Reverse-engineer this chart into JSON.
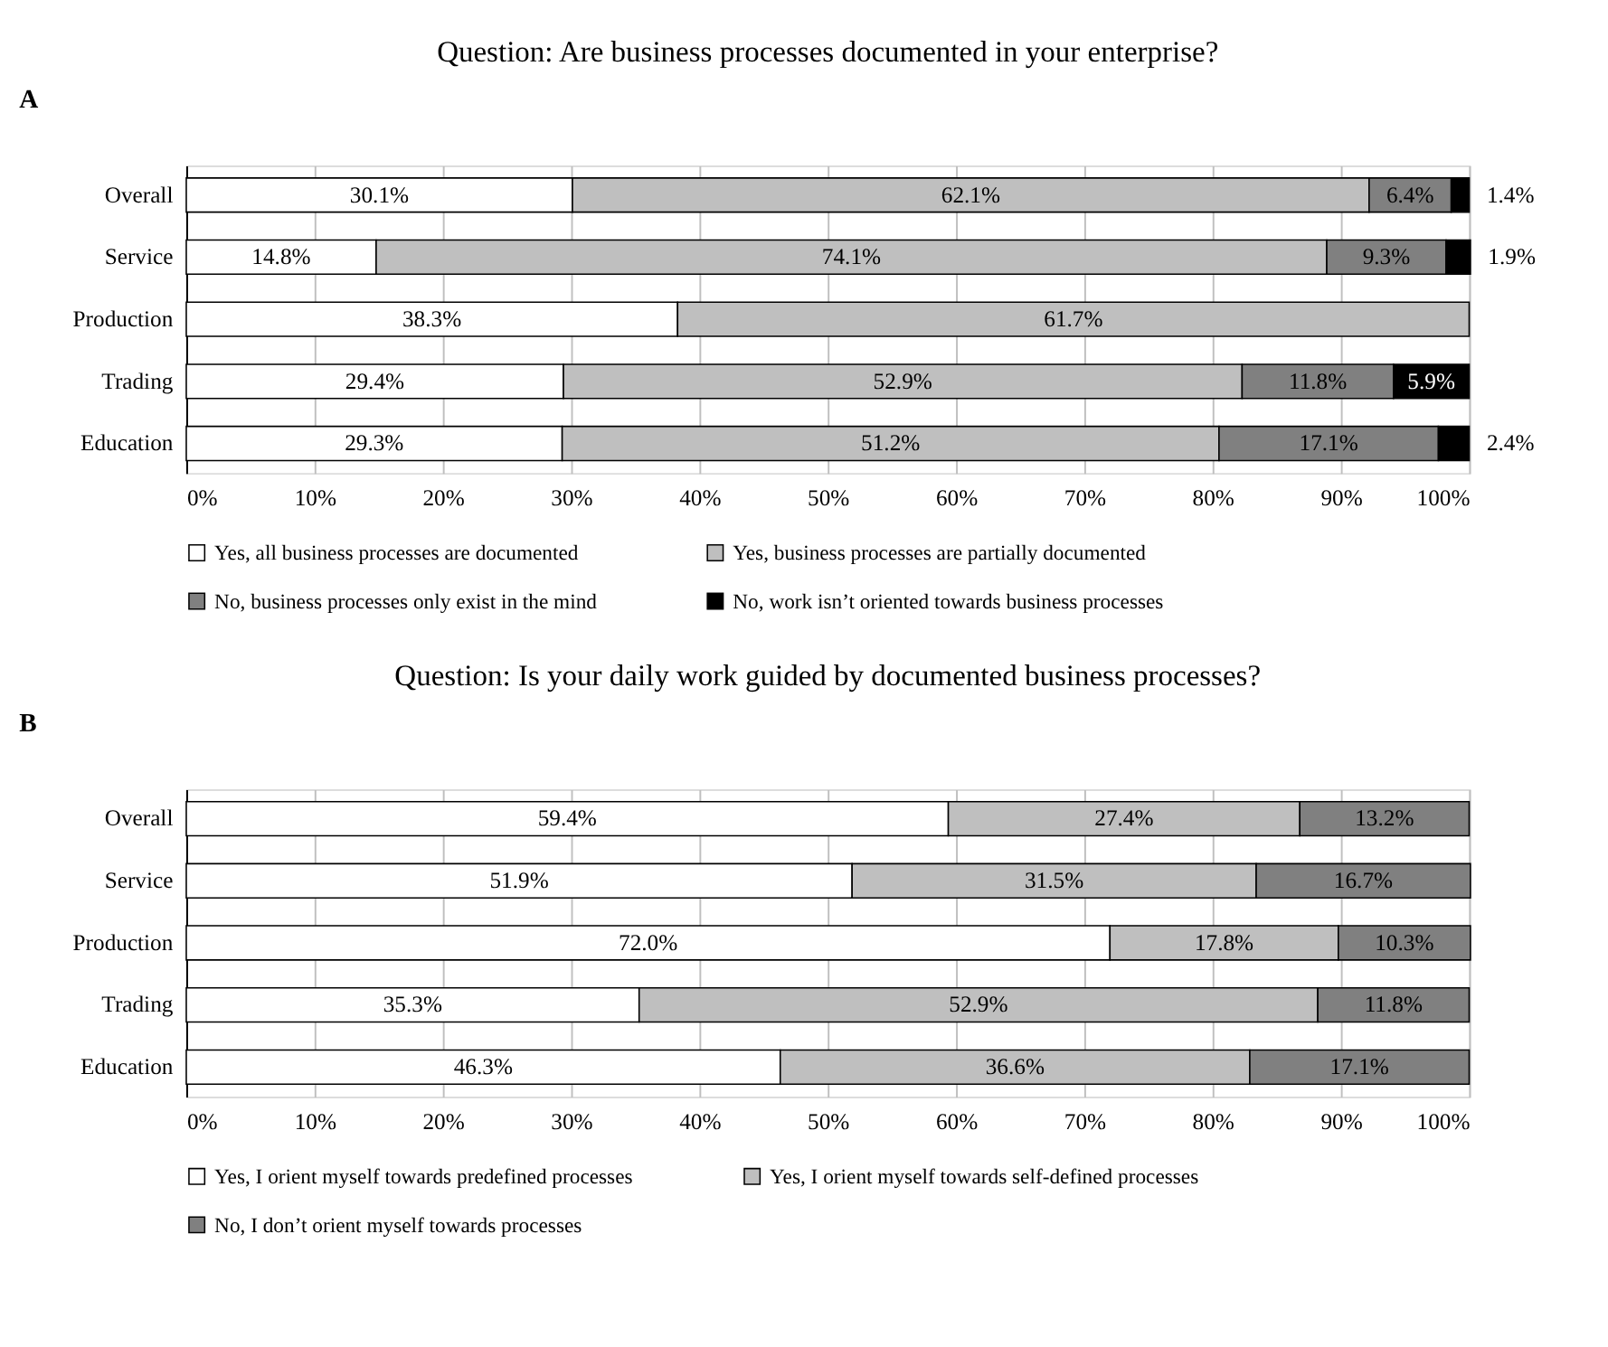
{
  "chart_data": [
    {
      "type": "bar",
      "orientation": "horizontal",
      "stacked": true,
      "title": "Question: Are business processes documented in your enterprise?",
      "annotations": [
        "A"
      ],
      "categories": [
        "Overall",
        "Service",
        "Production",
        "Trading",
        "Education"
      ],
      "series": [
        {
          "name": "Yes, all business processes are documented",
          "color": "#ffffff",
          "values": [
            30.1,
            14.8,
            38.3,
            29.4,
            29.3
          ],
          "value_labels": [
            "30.1%",
            "14.8%",
            "38.3%",
            "29.4%",
            "29.3%"
          ]
        },
        {
          "name": "Yes, business processes are partially documented",
          "color": "#bfbfbf",
          "values": [
            62.1,
            74.1,
            61.7,
            52.9,
            51.2
          ],
          "value_labels": [
            "62.1%",
            "74.1%",
            "61.7%",
            "52.9%",
            "51.2%"
          ]
        },
        {
          "name": "No, business processes only exist in the mind",
          "color": "#808080",
          "values": [
            6.4,
            9.3,
            null,
            11.8,
            17.1
          ],
          "value_labels": [
            "6.4%",
            "9.3%",
            null,
            "11.8%",
            "17.1%"
          ]
        },
        {
          "name": "No, work isn’t oriented towards business processes",
          "color": "#000000",
          "values": [
            1.4,
            1.9,
            null,
            5.9,
            2.4
          ],
          "value_labels": [
            "1.4%",
            "1.9%",
            null,
            "5.9%",
            "2.4%"
          ]
        }
      ],
      "xlim": [
        0,
        100
      ],
      "xticks": [
        {
          "value": 0,
          "label": "0%"
        },
        {
          "value": 10,
          "label": "10%"
        },
        {
          "value": 20,
          "label": "20%"
        },
        {
          "value": 30,
          "label": "30%"
        },
        {
          "value": 40,
          "label": "40%"
        },
        {
          "value": 50,
          "label": "50%"
        },
        {
          "value": 60,
          "label": "60%"
        },
        {
          "value": 70,
          "label": "70%"
        },
        {
          "value": 80,
          "label": "80%"
        },
        {
          "value": 90,
          "label": "90%"
        },
        {
          "value": 100,
          "label": "100%"
        }
      ],
      "grid": "x",
      "legend": "bottom"
    },
    {
      "type": "bar",
      "orientation": "horizontal",
      "stacked": true,
      "title": "Question: Is your daily work guided by documented business processes?",
      "annotations": [
        "B"
      ],
      "categories": [
        "Overall",
        "Service",
        "Production",
        "Trading",
        "Education"
      ],
      "series": [
        {
          "name": "Yes, I orient myself towards predefined processes",
          "color": "#ffffff",
          "values": [
            59.4,
            51.9,
            72.0,
            35.3,
            46.3
          ],
          "value_labels": [
            "59.4%",
            "51.9%",
            "72.0%",
            "35.3%",
            "46.3%"
          ]
        },
        {
          "name": "Yes, I orient myself towards self-defined processes",
          "color": "#bfbfbf",
          "values": [
            27.4,
            31.5,
            17.8,
            52.9,
            36.6
          ],
          "value_labels": [
            "27.4%",
            "31.5%",
            "17.8%",
            "52.9%",
            "36.6%"
          ]
        },
        {
          "name": "No, I don’t orient myself towards processes",
          "color": "#808080",
          "values": [
            13.2,
            16.7,
            10.3,
            11.8,
            17.1
          ],
          "value_labels": [
            "13.2%",
            "16.7%",
            "10.3%",
            "11.8%",
            "17.1%"
          ]
        }
      ],
      "xlim": [
        0,
        100
      ],
      "xticks": [
        {
          "value": 0,
          "label": "0%"
        },
        {
          "value": 10,
          "label": "10%"
        },
        {
          "value": 20,
          "label": "20%"
        },
        {
          "value": 30,
          "label": "30%"
        },
        {
          "value": 40,
          "label": "40%"
        },
        {
          "value": 50,
          "label": "50%"
        },
        {
          "value": 60,
          "label": "60%"
        },
        {
          "value": 70,
          "label": "70%"
        },
        {
          "value": 80,
          "label": "80%"
        },
        {
          "value": 90,
          "label": "90%"
        },
        {
          "value": 100,
          "label": "100%"
        }
      ],
      "grid": "x",
      "legend": "bottom"
    }
  ]
}
